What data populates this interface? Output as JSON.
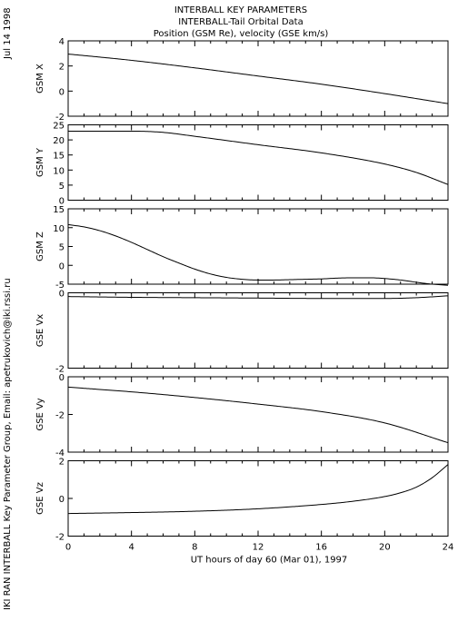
{
  "header": {
    "date_stamp": "Jul 14 1998",
    "title_line1": "INTERBALL KEY PARAMETERS",
    "title_line2": "INTERBALL-Tail Orbital Data",
    "title_line3": "Position (GSM Re), velocity (GSE km/s)",
    "credit": "IKI RAN INTERBALL Key Parameter Group, Email: apetrukovich@iki.rssi.ru"
  },
  "chart_data": [
    {
      "type": "line",
      "ylabel": "GSM X",
      "ylim": [
        -2,
        4
      ],
      "yticks": [
        -2,
        0,
        2,
        4
      ],
      "xlim": [
        0,
        24
      ],
      "x": [
        0,
        4,
        8,
        12,
        16,
        20,
        24
      ],
      "series": [
        {
          "values": [
            2.95,
            2.45,
            1.85,
            1.2,
            0.55,
            -0.2,
            -1.0
          ]
        }
      ]
    },
    {
      "type": "line",
      "ylabel": "GSM Y",
      "ylim": [
        0,
        25
      ],
      "yticks": [
        0,
        5,
        10,
        15,
        20,
        25
      ],
      "xlim": [
        0,
        24
      ],
      "x": [
        0,
        4,
        6,
        8,
        12,
        16,
        20,
        22,
        24
      ],
      "series": [
        {
          "values": [
            22.9,
            22.9,
            22.5,
            21.2,
            18.4,
            15.7,
            12.0,
            9.2,
            5.2
          ]
        }
      ]
    },
    {
      "type": "line",
      "ylabel": "GSM Z",
      "ylim": [
        -5,
        15
      ],
      "yticks": [
        -5,
        0,
        5,
        10,
        15
      ],
      "xlim": [
        0,
        24
      ],
      "x": [
        0,
        1,
        2,
        3,
        4,
        5,
        6,
        7,
        8,
        9,
        10,
        11,
        12,
        13,
        14,
        15,
        16,
        17,
        18,
        19,
        20,
        21,
        22,
        23,
        24
      ],
      "series": [
        {
          "values": [
            10.8,
            10.2,
            9.2,
            7.8,
            6.1,
            4.2,
            2.3,
            0.6,
            -1.0,
            -2.3,
            -3.2,
            -3.7,
            -3.9,
            -3.9,
            -3.8,
            -3.7,
            -3.6,
            -3.4,
            -3.3,
            -3.3,
            -3.5,
            -3.9,
            -4.5,
            -5.0,
            -5.3
          ]
        }
      ]
    },
    {
      "type": "line",
      "ylabel": "GSE Vx",
      "ylim": [
        -2,
        0
      ],
      "yticks": [
        -2,
        0
      ],
      "xlim": [
        0,
        24
      ],
      "x": [
        0,
        4,
        8,
        12,
        16,
        20,
        22,
        24
      ],
      "series": [
        {
          "values": [
            -0.1,
            -0.12,
            -0.13,
            -0.14,
            -0.15,
            -0.15,
            -0.13,
            -0.08
          ]
        }
      ]
    },
    {
      "type": "line",
      "ylabel": "GSE Vy",
      "ylim": [
        -4,
        0
      ],
      "yticks": [
        -4,
        -2,
        0
      ],
      "xlim": [
        0,
        24
      ],
      "x": [
        0,
        4,
        8,
        12,
        16,
        20,
        24
      ],
      "series": [
        {
          "values": [
            -0.55,
            -0.8,
            -1.1,
            -1.45,
            -1.85,
            -2.45,
            -3.5
          ]
        }
      ]
    },
    {
      "type": "line",
      "ylabel": "GSE Vz",
      "ylim": [
        -2,
        2
      ],
      "yticks": [
        -2,
        0,
        2
      ],
      "xlim": [
        0,
        24
      ],
      "xlabel": "UT hours of day  60 (Mar 01), 1997",
      "xticks": [
        0,
        4,
        8,
        12,
        16,
        20,
        24
      ],
      "x": [
        0,
        4,
        8,
        12,
        16,
        18,
        20,
        21,
        22,
        23,
        24
      ],
      "series": [
        {
          "values": [
            -0.8,
            -0.75,
            -0.68,
            -0.55,
            -0.32,
            -0.15,
            0.1,
            0.3,
            0.6,
            1.1,
            1.8
          ]
        }
      ]
    }
  ]
}
